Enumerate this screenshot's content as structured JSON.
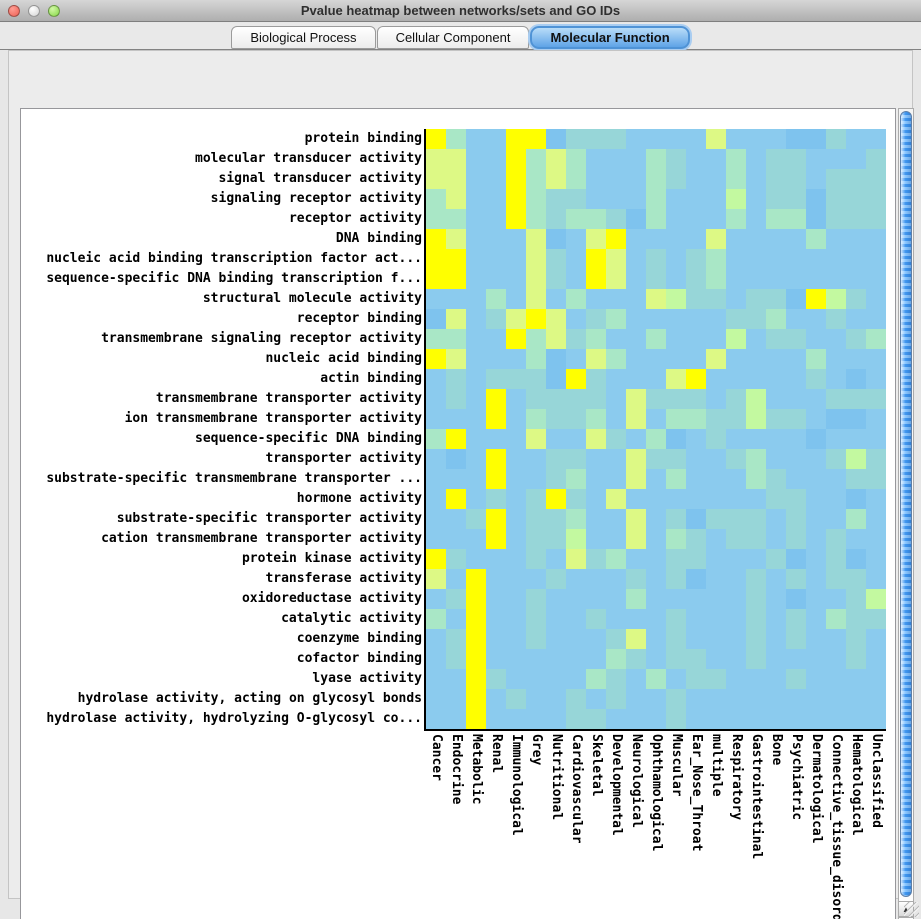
{
  "window": {
    "title": "Pvalue heatmap between networks/sets and GO IDs",
    "traffic_lights": {
      "close": "close-circle",
      "minimize": "minimize-circle",
      "zoom": "zoom-circle"
    }
  },
  "tabs": [
    {
      "label": "Biological Process",
      "selected": false
    },
    {
      "label": "Cellular Component",
      "selected": false
    },
    {
      "label": "Molecular Function",
      "selected": true
    }
  ],
  "icons": {
    "scroll_up": "▲",
    "scroll_down": "▼",
    "scroll_left": "◀",
    "scroll_right": "▶"
  },
  "chart_data": {
    "type": "heatmap",
    "title": "Pvalue heatmap between networks/sets and GO IDs",
    "rows": [
      "protein binding",
      "molecular transducer activity",
      "signal transducer activity",
      "signaling receptor activity",
      "receptor activity",
      "DNA binding",
      "nucleic acid binding transcription factor act...",
      "sequence-specific DNA binding transcription f...",
      "structural molecule activity",
      "receptor binding",
      "transmembrane signaling receptor activity",
      "nucleic acid binding",
      "actin binding",
      "transmembrane transporter activity",
      "ion transmembrane transporter activity",
      "sequence-specific DNA binding",
      "transporter activity",
      "substrate-specific transmembrane transporter ...",
      "hormone activity",
      "substrate-specific transporter activity",
      "cation transmembrane transporter activity",
      "protein kinase activity",
      "transferase activity",
      "oxidoreductase activity",
      "catalytic activity",
      "coenzyme binding",
      "cofactor binding",
      "lyase activity",
      "hydrolase activity, acting on glycosyl bonds",
      "hydrolase activity, hydrolyzing O-glycosyl co..."
    ],
    "columns": [
      "Cancer",
      "Endocrine",
      "Metabolic",
      "Renal",
      "Immunological",
      "Grey",
      "Nutritional",
      "Cardiovascular",
      "Skeletal",
      "Developmental",
      "Neurological",
      "Ophthamological",
      "Muscular",
      "Ear_Nose_Throat",
      "multiple",
      "Respiratory",
      "Gastrointestinal",
      "Bone",
      "Psychiatric",
      "Dermatological",
      "Connective_tissue_disorder",
      "Hematological",
      "Unclassified"
    ],
    "palette": {
      "Y": "#ffff00",
      "y": "#ddf985",
      "G": "#c3f9a0",
      "g": "#a9e7c6",
      "t": "#97d6d8",
      "b": "#8bcbee",
      "d": "#7ec3ee"
    },
    "palette_meaning": "Y=lowest pvalue (yellow) … d=highest pvalue (blue)",
    "cells": [
      "YgbbYYdtttbbbbybbbddtbb",
      "yybbYgygbbbgtbbgbttbbbt",
      "yybbYgygbbbgtbbgbttbttt",
      "gybbYgttbbbgbbbGbttdttt",
      "ggbbYgtggtdgbbbgbggdttt",
      "YybbbydbyYbbbbybbbbgbbb",
      "YYbbbytbYybtbtgbbbbbbbb",
      "YYbbbytbYybtbtgbbbbbbbb",
      "bbbgbybgbbbyGttbttdYGtb",
      "dybtyYybtgbbbbbttgbbtbb",
      "ggbbYgytgbbgbbbGbttbbtg",
      "Yybbbgdbygbbbbybbbbgbbb",
      "btbtttdYtbbbyYbbbbbtbdb",
      "btbYbttttbytttbtGbbbttt",
      "bbbYbgttgbybggttGttbddb",
      "gYbbbybbytbgdbtbbbbdbbb",
      "bdbYbbttbbyttbbtgbbbtGt",
      "bbbYbbtgbbybgbbbgtbbbtt",
      "bYbtbtYtbybbbbbbbttbbdb",
      "bbtYbttgbbybtdtttbtbbgb",
      "bbbYbttGbbybgtbttbtbtbb",
      "Ytbbbtbytgbbttbbbtdbtdb",
      "ybYbbbtbbbtbtdbbtbtbttb",
      "btYbbtbbbbgbbbbbtbdbbtG",
      "gbYbbtbbtbbbtbbbtbtbgtt",
      "btYbbtbbbtybtbbbtbtbbtb",
      "btYbbbbbbgtbttbbtbbbbtb",
      "bbYtbbbbgtbgbttbbbtbbbb",
      "bbYbtbbtbtbbtbbbbbbbbbb",
      "bbYbbbbttbbbtbbbbbbbbbb"
    ]
  }
}
